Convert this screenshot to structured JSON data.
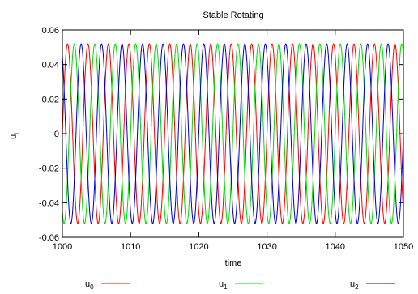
{
  "chart_data": {
    "type": "line",
    "title": "Stable Rotating",
    "xlabel": "time",
    "ylabel": {
      "base": "u",
      "sub": "i"
    },
    "xlim": [
      1000,
      1050
    ],
    "ylim": [
      -0.06,
      0.06
    ],
    "x_ticks": [
      "1000",
      "1010",
      "1020",
      "1030",
      "1040",
      "1050"
    ],
    "y_ticks": [
      "-0.06",
      "-0.04",
      "-0.02",
      "0",
      "0.02",
      "0.04",
      "0.06"
    ],
    "x_tick_values": [
      1000,
      1010,
      1020,
      1030,
      1040,
      1050
    ],
    "y_tick_values": [
      -0.06,
      -0.04,
      -0.02,
      0,
      0.02,
      0.04,
      0.06
    ],
    "grid": false,
    "legend_position": "bottom",
    "series": [
      {
        "name": {
          "base": "u",
          "sub": "0"
        },
        "color": "#ff0000",
        "amplitude": 0.052,
        "period": 3.0,
        "phase_deg": 0,
        "x_start": 1000,
        "x_end": 1050
      },
      {
        "name": {
          "base": "u",
          "sub": "1"
        },
        "color": "#00dd00",
        "amplitude": 0.052,
        "period": 3.0,
        "phase_deg": -120,
        "x_start": 1000,
        "x_end": 1050
      },
      {
        "name": {
          "base": "u",
          "sub": "2"
        },
        "color": "#0000cc",
        "amplitude": 0.052,
        "period": 3.0,
        "phase_deg": 120,
        "x_start": 1000,
        "x_end": 1050
      }
    ]
  }
}
